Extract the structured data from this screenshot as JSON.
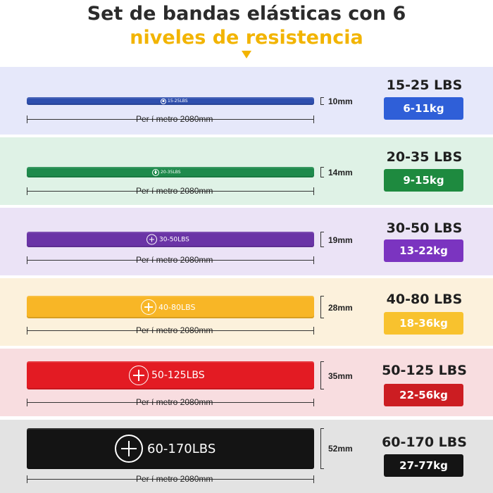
{
  "header": {
    "title_line1": "Set de bandas elásticas con 6",
    "title_line2": "niveles de resistencia"
  },
  "colors": {
    "accent": "#f2b400"
  },
  "bands": [
    {
      "band_label": "15-25LBS",
      "width": "10mm",
      "perimeter": "Per í metro 2080mm",
      "lbs": "15-25 LBS",
      "kg": "6-11kg",
      "color": "#2f4fae",
      "kg_color": "#2f5fd8",
      "bg": "#e6e8fa"
    },
    {
      "band_label": "20-35LBS",
      "width": "14mm",
      "perimeter": "Per í metro 2080mm",
      "lbs": "20-35 LBS",
      "kg": "9-15kg",
      "color": "#1e8a4c",
      "kg_color": "#1e8a3f",
      "bg": "#dff2e6"
    },
    {
      "band_label": "30-50LBS",
      "width": "19mm",
      "perimeter": "Per í metro 2080mm",
      "lbs": "30-50 LBS",
      "kg": "13-22kg",
      "color": "#6a34a6",
      "kg_color": "#7b34c0",
      "bg": "#ebe3f6"
    },
    {
      "band_label": "40-80LBS",
      "width": "28mm",
      "perimeter": "Per í metro 2080mm",
      "lbs": "40-80 LBS",
      "kg": "18-36kg",
      "color": "#f8b626",
      "kg_color": "#f8c22e",
      "bg": "#fcf1dc"
    },
    {
      "band_label": "50-125LBS",
      "width": "35mm",
      "perimeter": "Per í metro 2080mm",
      "lbs": "50-125 LBS",
      "kg": "22-56kg",
      "color": "#e31b23",
      "kg_color": "#cc1d22",
      "bg": "#f8dde0"
    },
    {
      "band_label": "60-170LBS",
      "width": "52mm",
      "perimeter": "Per í metro 2080mm",
      "lbs": "60-170 LBS",
      "kg": "27-77kg",
      "color": "#141414",
      "kg_color": "#141414",
      "bg": "#e3e3e3"
    }
  ]
}
